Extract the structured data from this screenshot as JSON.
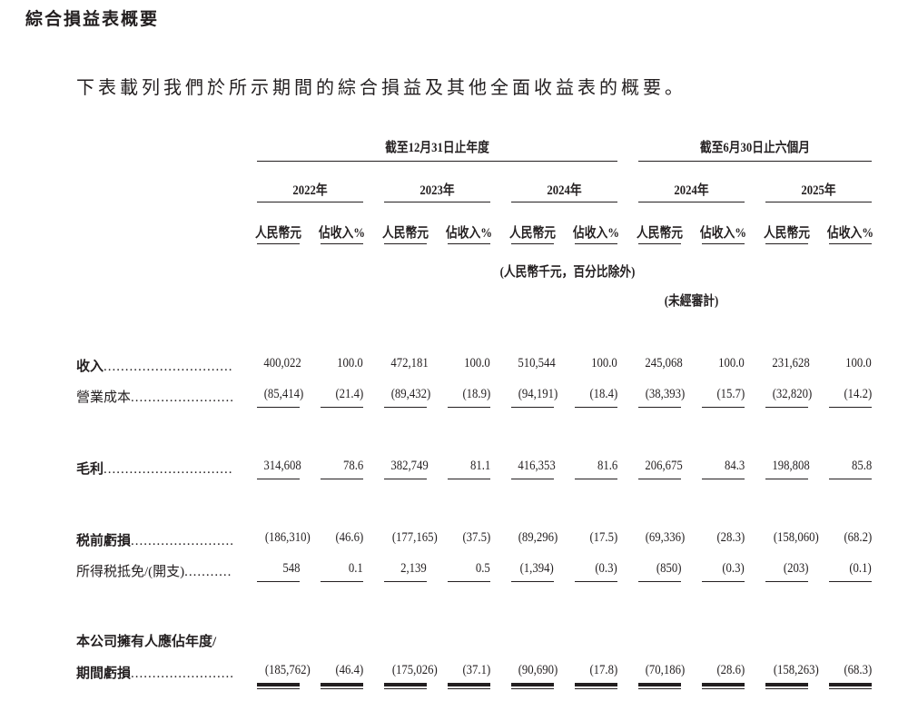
{
  "title": "綜合損益表概要",
  "intro": "下表載列我們於所示期間的綜合損益及其他全面收益表的概要。",
  "periods": [
    {
      "label": "截至12月31日止年度",
      "years": [
        "2022年",
        "2023年",
        "2024年"
      ]
    },
    {
      "label": "截至6月30日止六個月",
      "years": [
        "2024年",
        "2025年"
      ]
    }
  ],
  "col_headers": [
    "人民幣元",
    "佔收入%"
  ],
  "units_note": "(人民幣千元，百分比除外)",
  "unaudited_note": "(未經審計)",
  "rows": [
    {
      "label": "收入",
      "bold": true,
      "values": [
        "400,022",
        "100.0",
        "472,181",
        "100.0",
        "510,544",
        "100.0",
        "245,068",
        "100.0",
        "231,628",
        "100.0"
      ]
    },
    {
      "label": "營業成本",
      "bold": false,
      "values": [
        "(85,414)",
        "(21.4)",
        "(89,432)",
        "(18.9)",
        "(94,191)",
        "(18.4)",
        "(38,393)",
        "(15.7)",
        "(32,820)",
        "(14.2)"
      ]
    },
    {
      "label": "毛利",
      "bold": true,
      "values": [
        "314,608",
        "78.6",
        "382,749",
        "81.1",
        "416,353",
        "81.6",
        "206,675",
        "84.3",
        "198,808",
        "85.8"
      ]
    },
    {
      "label": "税前虧損",
      "bold": true,
      "values": [
        "(186,310)",
        "(46.6)",
        "(177,165)",
        "(37.5)",
        "(89,296)",
        "(17.5)",
        "(69,336)",
        "(28.3)",
        "(158,060)",
        "(68.2)"
      ]
    },
    {
      "label": "所得税抵免/(開支)",
      "bold": false,
      "values": [
        "548",
        "0.1",
        "2,139",
        "0.5",
        "(1,394)",
        "(0.3)",
        "(850)",
        "(0.3)",
        "(203)",
        "(0.1)"
      ]
    },
    {
      "label": "本公司擁有人應佔年度/",
      "label2": "期間虧損",
      "bold": true,
      "values": [
        "(185,762)",
        "(46.4)",
        "(175,026)",
        "(37.1)",
        "(90,690)",
        "(17.8)",
        "(70,186)",
        "(28.6)",
        "(158,263)",
        "(68.3)"
      ]
    }
  ]
}
